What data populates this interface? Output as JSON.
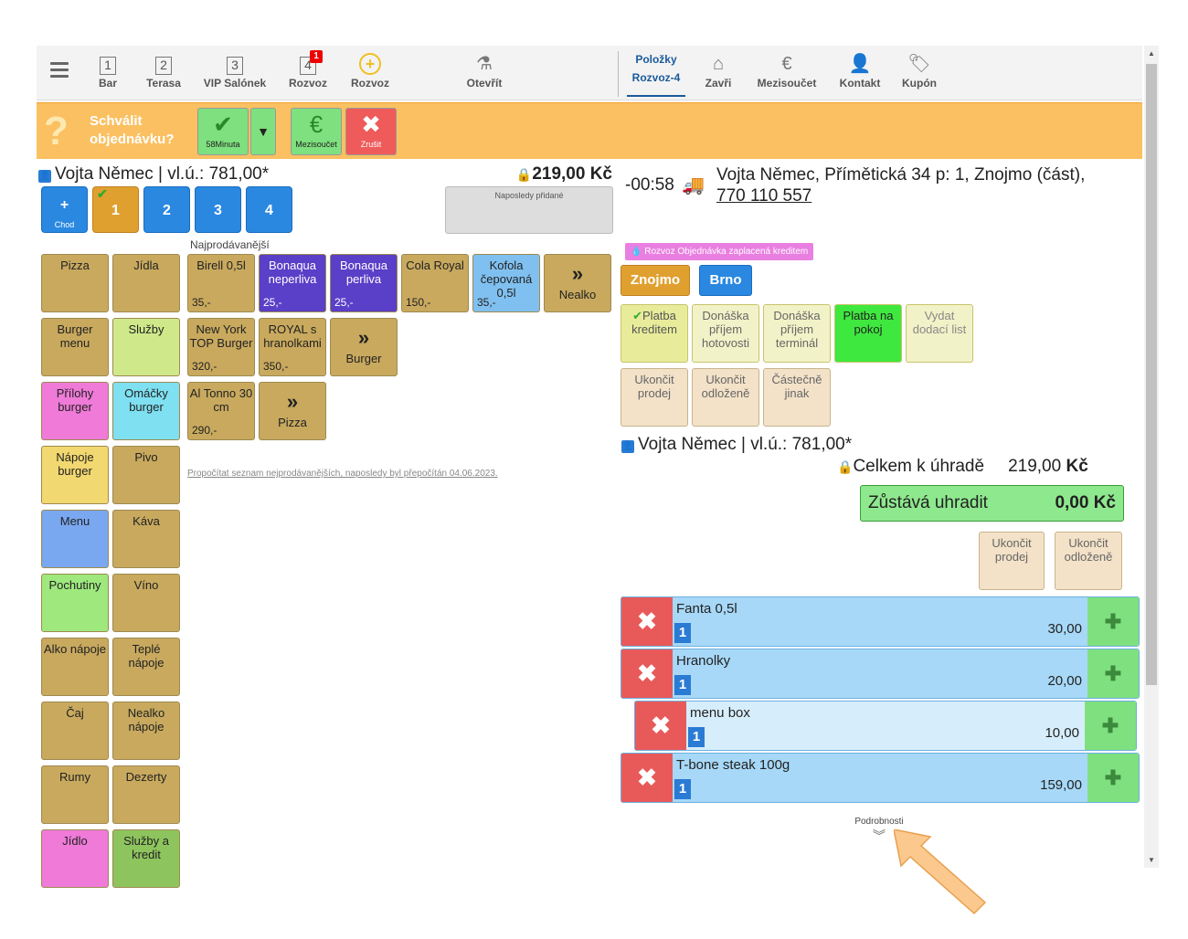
{
  "topbar": {
    "items": [
      {
        "num": "1",
        "label": "Bar"
      },
      {
        "num": "2",
        "label": "Terasa"
      },
      {
        "num": "3",
        "label": "VIP Salónek"
      },
      {
        "num": "4",
        "label": "Rozvoz",
        "badge": "1"
      },
      {
        "num": "+",
        "label": "Rozvoz"
      },
      {
        "label": "Otevřít"
      }
    ],
    "right": [
      {
        "label": "Položky",
        "sub": "Rozvoz-4"
      },
      {
        "label": "Zavři"
      },
      {
        "label": "Mezisoučet"
      },
      {
        "label": "Kontakt"
      },
      {
        "label": "Kupón"
      }
    ]
  },
  "approve": {
    "line1": "Schválit",
    "line2": "objednávku?",
    "ok_sub": "58Minuta",
    "mezi_sub": "Mezisoučet",
    "cancel_sub": "Zrušit",
    "qmark": "?"
  },
  "left": {
    "customer": "Vojta Němec | vl.ú.: 781,00*",
    "total": "219,00 Kč",
    "chod_plus": "+",
    "chod_label": "Chod",
    "chody": [
      "1",
      "2",
      "3",
      "4"
    ],
    "last_added": "Naposledy přidané",
    "top_label": "Najprodávanější",
    "recalc": "Propočítat seznam nejprodávanějších, naposledy byl přepočítán 04.06.2023."
  },
  "categories": [
    [
      "Pizza",
      "Jídla"
    ],
    [
      "Burger menu",
      "Služby"
    ],
    [
      "Přílohy burger",
      "Omáčky burger"
    ],
    [
      "Nápoje burger",
      "Pivo"
    ],
    [
      "Menu",
      "Káva"
    ],
    [
      "Pochutiny",
      "Víno"
    ],
    [
      "Alko nápoje",
      "Teplé nápoje"
    ],
    [
      "Čaj",
      "Nealko nápoje"
    ],
    [
      "Rumy",
      "Dezerty"
    ],
    [
      "Jídlo",
      "Služby a kredit"
    ]
  ],
  "top": [
    {
      "name": "Birell 0,5l",
      "price": "35,-"
    },
    {
      "name": "Bonaqua neperliva",
      "price": "25,-"
    },
    {
      "name": "Bonaqua perliva",
      "price": "25,-"
    },
    {
      "name": "Cola Royal",
      "price": "150,-"
    },
    {
      "name": "Kofola čepovaná 0,5l",
      "price": "35,-"
    },
    {
      "name": "Nealko",
      "arrow": "»"
    },
    {
      "name": "New York TOP Burger",
      "price": "320,-"
    },
    {
      "name": "ROYAL s hranolkami",
      "price": "350,-"
    },
    {
      "name": "Burger",
      "arrow": "»"
    },
    {
      "name": "Al Tonno 30 cm",
      "price": "290,-"
    },
    {
      "name": "Pizza",
      "arrow": "»"
    }
  ],
  "right": {
    "timer": "-00:58",
    "address": "Vojta Němec, Přímětická 34 p: 1, Znojmo (část),",
    "phone": "770 110 557",
    "tag": "Rozvoz Objednávka zaplacená kreditem",
    "branches": [
      "Znojmo",
      "Brno"
    ],
    "pay1": [
      "Platba kreditem",
      "Donáška příjem hotovosti",
      "Donáška příjem terminál",
      "Platba na pokoj",
      "Vydat dodací list"
    ],
    "pay2": [
      "Ukončit prodej",
      "Ukončit odloženě",
      "Částečně jinak"
    ],
    "customer": "Vojta Němec | vl.ú.: 781,00*",
    "celkem_label": "Celkem k úhradě",
    "celkem": "219,00",
    "kc": "Kč",
    "zbyva_label": "Zůstává uhradit",
    "zbyva": "0,00",
    "end1": "Ukončit prodej",
    "end2": "Ukončit odloženě",
    "items": [
      {
        "name": "Fanta 0,5l",
        "qty": "1",
        "price": "30,00"
      },
      {
        "name": "Hranolky",
        "qty": "1",
        "price": "20,00"
      },
      {
        "name": "menu box",
        "qty": "1",
        "price": "10,00"
      },
      {
        "name": "T-bone steak 100g",
        "qty": "1",
        "price": "159,00"
      }
    ],
    "details": "Podrobnosti"
  },
  "colors": {
    "accent": "#fac061",
    "blue": "#2a88e0"
  }
}
